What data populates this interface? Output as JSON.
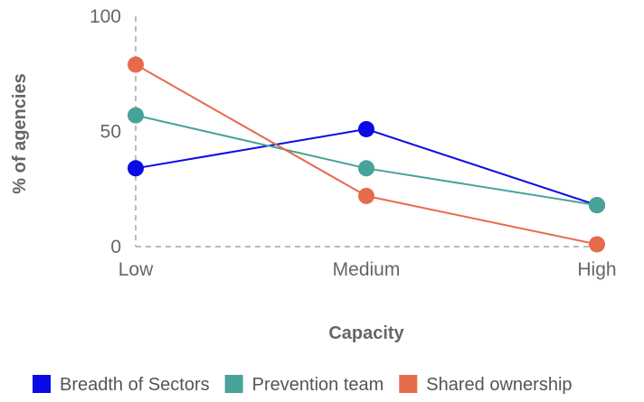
{
  "chart_data": {
    "type": "line",
    "categories": [
      "Low",
      "Medium",
      "High"
    ],
    "series": [
      {
        "name": "Breadth of Sectors",
        "color": "#0a0ae6",
        "values": [
          34,
          51,
          18
        ]
      },
      {
        "name": "Prevention team",
        "color": "#47a397",
        "values": [
          57,
          34,
          18
        ]
      },
      {
        "name": "Shared ownership",
        "color": "#e66b4d",
        "values": [
          79,
          22,
          1
        ]
      }
    ],
    "xlabel": "Capacity",
    "ylabel": "% of agencies",
    "ylim": [
      0,
      100
    ],
    "yticks": [
      0,
      50,
      100
    ],
    "grid": false,
    "legend_position": "bottom"
  }
}
